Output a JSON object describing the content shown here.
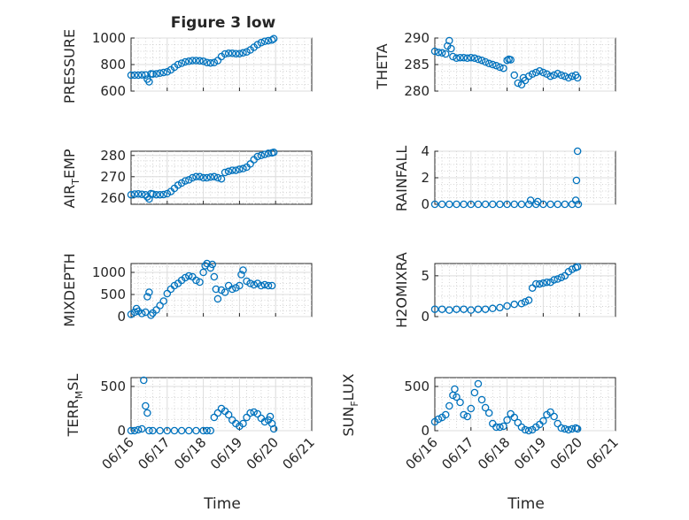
{
  "figure": {
    "title": "Figure 3 low",
    "xlabel": "Time",
    "marker_color": "#0072BD",
    "x_tick_labels": [
      "06/16",
      "06/17",
      "06/18",
      "06/19",
      "06/20",
      "06/21"
    ]
  },
  "chart_data": [
    {
      "type": "scatter",
      "ylabel": "PRESSURE",
      "ylim": [
        600,
        1000
      ],
      "yticks": [
        600,
        800,
        1000
      ],
      "ytick_labels": [
        "600",
        "800",
        "1000"
      ],
      "xlim": [
        0,
        5
      ],
      "grid": true,
      "series": [
        {
          "x": [
            0,
            0.1,
            0.2,
            0.3,
            0.4,
            0.45,
            0.5,
            0.55,
            0.6,
            0.7,
            0.8,
            0.9,
            1.0,
            1.1,
            1.2,
            1.3,
            1.4,
            1.5,
            1.6,
            1.7,
            1.8,
            1.9,
            2.0,
            2.1,
            2.2,
            2.3,
            2.4,
            2.5,
            2.6,
            2.7,
            2.8,
            2.9,
            3.0,
            3.1,
            3.2,
            3.3,
            3.4,
            3.5,
            3.6,
            3.7,
            3.8,
            3.9,
            3.95
          ],
          "y": [
            720,
            720,
            720,
            722,
            722,
            690,
            670,
            730,
            728,
            730,
            735,
            740,
            745,
            760,
            780,
            800,
            810,
            820,
            825,
            830,
            830,
            828,
            825,
            815,
            812,
            815,
            830,
            860,
            880,
            885,
            885,
            882,
            882,
            888,
            895,
            910,
            930,
            950,
            965,
            975,
            980,
            985,
            995
          ]
        }
      ]
    },
    {
      "type": "scatter",
      "ylabel": "THETA",
      "ylim": [
        280,
        290
      ],
      "yticks": [
        280,
        285,
        290
      ],
      "ytick_labels": [
        "280",
        "285",
        "290"
      ],
      "xlim": [
        0,
        5
      ],
      "grid": true,
      "series": [
        {
          "x": [
            0,
            0.1,
            0.2,
            0.3,
            0.35,
            0.4,
            0.45,
            0.5,
            0.6,
            0.7,
            0.8,
            0.9,
            1.0,
            1.1,
            1.2,
            1.3,
            1.4,
            1.5,
            1.6,
            1.7,
            1.8,
            1.9,
            2.0,
            2.05,
            2.1,
            2.2,
            2.3,
            2.4,
            2.45,
            2.5,
            2.6,
            2.7,
            2.8,
            2.9,
            3.0,
            3.1,
            3.2,
            3.3,
            3.4,
            3.5,
            3.6,
            3.7,
            3.8,
            3.9,
            3.95
          ],
          "y": [
            287.5,
            287.3,
            287.2,
            287.0,
            288.5,
            289.5,
            288.0,
            286.5,
            286.2,
            286.3,
            286.3,
            286.2,
            286.3,
            286.2,
            286.0,
            285.8,
            285.5,
            285.2,
            285.0,
            284.8,
            284.5,
            284.3,
            285.8,
            286.0,
            285.9,
            283.0,
            281.5,
            281.2,
            282.5,
            282.0,
            282.8,
            283.2,
            283.5,
            283.8,
            283.5,
            283.2,
            282.8,
            283.0,
            283.3,
            283.0,
            282.8,
            282.5,
            282.8,
            283.0,
            282.5
          ]
        }
      ]
    },
    {
      "type": "scatter",
      "ylabel": "AIR_TEMP",
      "ylim": [
        257,
        282
      ],
      "yticks": [
        260,
        270,
        280
      ],
      "ytick_labels": [
        "260",
        "270",
        "280"
      ],
      "xlim": [
        0,
        5
      ],
      "grid": true,
      "series": [
        {
          "x": [
            0,
            0.1,
            0.2,
            0.3,
            0.4,
            0.45,
            0.5,
            0.55,
            0.6,
            0.7,
            0.8,
            0.9,
            1.0,
            1.1,
            1.2,
            1.3,
            1.4,
            1.5,
            1.6,
            1.7,
            1.8,
            1.9,
            2.0,
            2.1,
            2.2,
            2.3,
            2.4,
            2.5,
            2.6,
            2.7,
            2.8,
            2.9,
            3.0,
            3.1,
            3.2,
            3.3,
            3.4,
            3.5,
            3.6,
            3.7,
            3.8,
            3.9,
            3.95
          ],
          "y": [
            261.5,
            261.8,
            261.9,
            261.7,
            261.5,
            260.5,
            259.5,
            262.0,
            261.8,
            261.5,
            261.5,
            261.6,
            262.0,
            263.0,
            264.5,
            266.0,
            267.0,
            268.0,
            268.5,
            269.5,
            270.0,
            270.0,
            269.5,
            269.5,
            269.8,
            270.0,
            269.5,
            269.0,
            272.0,
            272.5,
            273.0,
            273.0,
            273.5,
            273.8,
            274.5,
            276.0,
            278.0,
            279.5,
            280.0,
            280.5,
            281.0,
            281.2,
            281.5
          ]
        }
      ]
    },
    {
      "type": "scatter",
      "ylabel": "RAINFALL",
      "ylim": [
        0,
        4
      ],
      "yticks": [
        0,
        2,
        4
      ],
      "ytick_labels": [
        "0",
        "2",
        "4"
      ],
      "xlim": [
        0,
        5
      ],
      "grid": true,
      "series": [
        {
          "x": [
            0,
            0.2,
            0.4,
            0.6,
            0.8,
            1.0,
            1.2,
            1.4,
            1.6,
            1.8,
            2.0,
            2.2,
            2.4,
            2.6,
            2.65,
            2.8,
            2.85,
            3.0,
            3.2,
            3.4,
            3.6,
            3.8,
            3.9,
            3.92,
            3.95,
            3.97
          ],
          "y": [
            0,
            0,
            0,
            0,
            0,
            0,
            0,
            0,
            0,
            0,
            0,
            0,
            0,
            0,
            0.3,
            0,
            0.2,
            0,
            0,
            0,
            0,
            0,
            0.3,
            1.8,
            4.0,
            0
          ]
        }
      ]
    },
    {
      "type": "scatter",
      "ylabel": "MIXDEPTH",
      "ylim": [
        0,
        1200
      ],
      "yticks": [
        0,
        500,
        1000
      ],
      "ytick_labels": [
        "0",
        "500",
        "1000"
      ],
      "xlim": [
        0,
        5
      ],
      "grid": true,
      "series": [
        {
          "x": [
            0,
            0.1,
            0.15,
            0.2,
            0.3,
            0.4,
            0.45,
            0.5,
            0.55,
            0.6,
            0.7,
            0.8,
            0.9,
            1.0,
            1.1,
            1.2,
            1.3,
            1.4,
            1.5,
            1.6,
            1.7,
            1.8,
            1.9,
            2.0,
            2.05,
            2.1,
            2.2,
            2.25,
            2.3,
            2.35,
            2.4,
            2.5,
            2.6,
            2.7,
            2.8,
            2.9,
            3.0,
            3.05,
            3.1,
            3.2,
            3.3,
            3.4,
            3.5,
            3.6,
            3.7,
            3.8,
            3.9
          ],
          "y": [
            50,
            100,
            180,
            120,
            70,
            100,
            450,
            550,
            30,
            80,
            150,
            250,
            350,
            520,
            620,
            700,
            750,
            820,
            880,
            920,
            900,
            820,
            780,
            1000,
            1150,
            1200,
            1100,
            1180,
            900,
            620,
            400,
            600,
            550,
            700,
            620,
            650,
            700,
            950,
            1050,
            800,
            750,
            720,
            750,
            700,
            720,
            700,
            700
          ]
        }
      ]
    },
    {
      "type": "scatter",
      "ylabel": "H2OMIXRA",
      "ylim": [
        0,
        6.5
      ],
      "yticks": [
        0,
        5
      ],
      "ytick_labels": [
        "0",
        "5"
      ],
      "xlim": [
        0,
        5
      ],
      "grid": true,
      "series": [
        {
          "x": [
            0,
            0.2,
            0.4,
            0.6,
            0.8,
            1.0,
            1.2,
            1.4,
            1.6,
            1.8,
            2.0,
            2.2,
            2.4,
            2.5,
            2.6,
            2.7,
            2.8,
            2.9,
            3.0,
            3.1,
            3.2,
            3.3,
            3.4,
            3.5,
            3.6,
            3.7,
            3.8,
            3.9,
            3.95
          ],
          "y": [
            0.9,
            0.9,
            0.8,
            0.9,
            0.9,
            0.8,
            0.9,
            0.9,
            1.0,
            1.1,
            1.3,
            1.5,
            1.6,
            1.8,
            2.0,
            3.5,
            4.0,
            4.0,
            4.1,
            4.2,
            4.2,
            4.5,
            4.6,
            4.8,
            5.0,
            5.5,
            5.8,
            6.0,
            6.1
          ]
        }
      ]
    },
    {
      "type": "scatter",
      "ylabel": "TERR_MSL",
      "ylim": [
        0,
        600
      ],
      "yticks": [
        0,
        500
      ],
      "ytick_labels": [
        "0",
        "500"
      ],
      "xlim": [
        0,
        5
      ],
      "grid": true,
      "series": [
        {
          "x": [
            0,
            0.1,
            0.2,
            0.3,
            0.35,
            0.4,
            0.45,
            0.5,
            0.6,
            0.8,
            1.0,
            1.2,
            1.4,
            1.6,
            1.8,
            2.0,
            2.1,
            2.2,
            2.3,
            2.4,
            2.5,
            2.6,
            2.7,
            2.8,
            2.9,
            3.0,
            3.1,
            3.2,
            3.3,
            3.4,
            3.5,
            3.6,
            3.7,
            3.8,
            3.85,
            3.9,
            3.95
          ],
          "y": [
            0,
            0,
            10,
            20,
            570,
            280,
            200,
            0,
            0,
            0,
            0,
            0,
            0,
            0,
            0,
            0,
            0,
            0,
            150,
            200,
            250,
            220,
            180,
            120,
            80,
            50,
            80,
            150,
            200,
            210,
            190,
            140,
            100,
            120,
            160,
            80,
            20
          ]
        }
      ]
    },
    {
      "type": "scatter",
      "ylabel": "SUN_FLUX",
      "ylim": [
        0,
        600
      ],
      "yticks": [
        0,
        500
      ],
      "ytick_labels": [
        "0",
        "500"
      ],
      "xlim": [
        0,
        5
      ],
      "grid": true,
      "series": [
        {
          "x": [
            0,
            0.1,
            0.2,
            0.3,
            0.4,
            0.5,
            0.55,
            0.6,
            0.7,
            0.8,
            0.9,
            1.0,
            1.1,
            1.2,
            1.3,
            1.4,
            1.5,
            1.6,
            1.7,
            1.8,
            1.9,
            2.0,
            2.1,
            2.2,
            2.3,
            2.4,
            2.5,
            2.6,
            2.7,
            2.8,
            2.9,
            3.0,
            3.1,
            3.2,
            3.3,
            3.4,
            3.5,
            3.6,
            3.7,
            3.8,
            3.9,
            3.95
          ],
          "y": [
            100,
            130,
            150,
            180,
            280,
            400,
            470,
            380,
            320,
            180,
            160,
            250,
            430,
            530,
            350,
            260,
            200,
            80,
            40,
            40,
            50,
            120,
            190,
            150,
            90,
            40,
            10,
            0,
            10,
            40,
            70,
            110,
            180,
            210,
            160,
            80,
            30,
            20,
            10,
            20,
            30,
            20
          ]
        }
      ]
    }
  ]
}
